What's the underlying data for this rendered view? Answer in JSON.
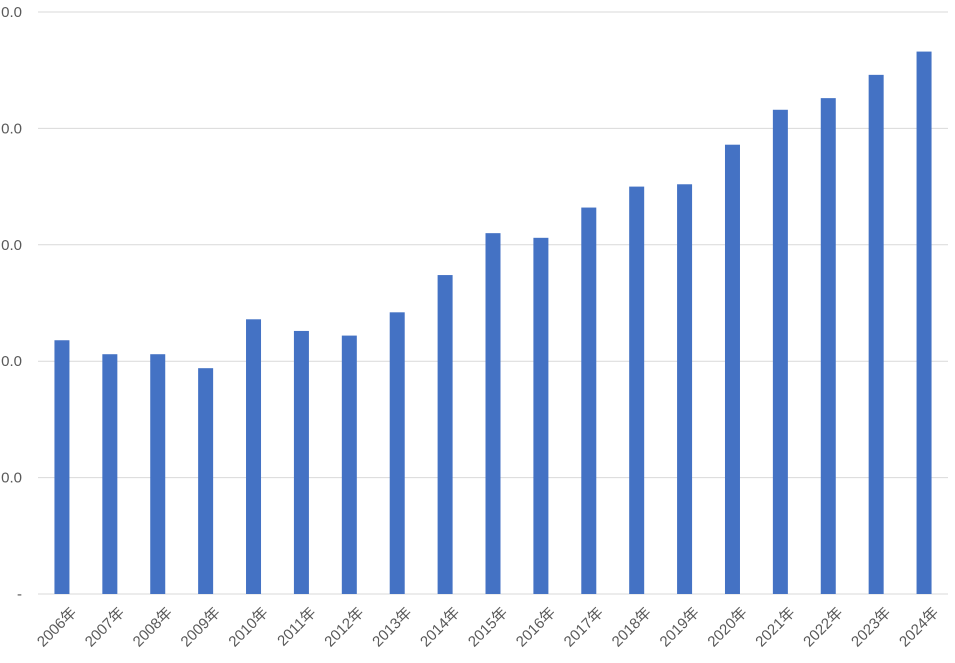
{
  "chart_data": {
    "type": "bar",
    "title": "",
    "xlabel": "",
    "ylabel": "",
    "categories": [
      "2006年",
      "2007年",
      "2008年",
      "2009年",
      "2010年",
      "2011年",
      "2012年",
      "2013年",
      "2014年",
      "2015年",
      "2016年",
      "2017年",
      "2018年",
      "2019年",
      "2020年",
      "2021年",
      "2022年",
      "2023年",
      "2024年"
    ],
    "values": [
      10.9,
      10.3,
      10.3,
      9.7,
      11.8,
      11.3,
      11.1,
      12.1,
      13.7,
      15.5,
      15.3,
      16.6,
      17.5,
      17.6,
      19.3,
      20.8,
      21.3,
      22.3,
      23.3
    ],
    "y_ticks": [
      "-",
      "0.0",
      "0.0",
      "0.0",
      "0.0",
      "0.0"
    ],
    "ylim": [
      0,
      25
    ],
    "grid": true,
    "legend": "none",
    "bar_color": "#4472c4"
  }
}
